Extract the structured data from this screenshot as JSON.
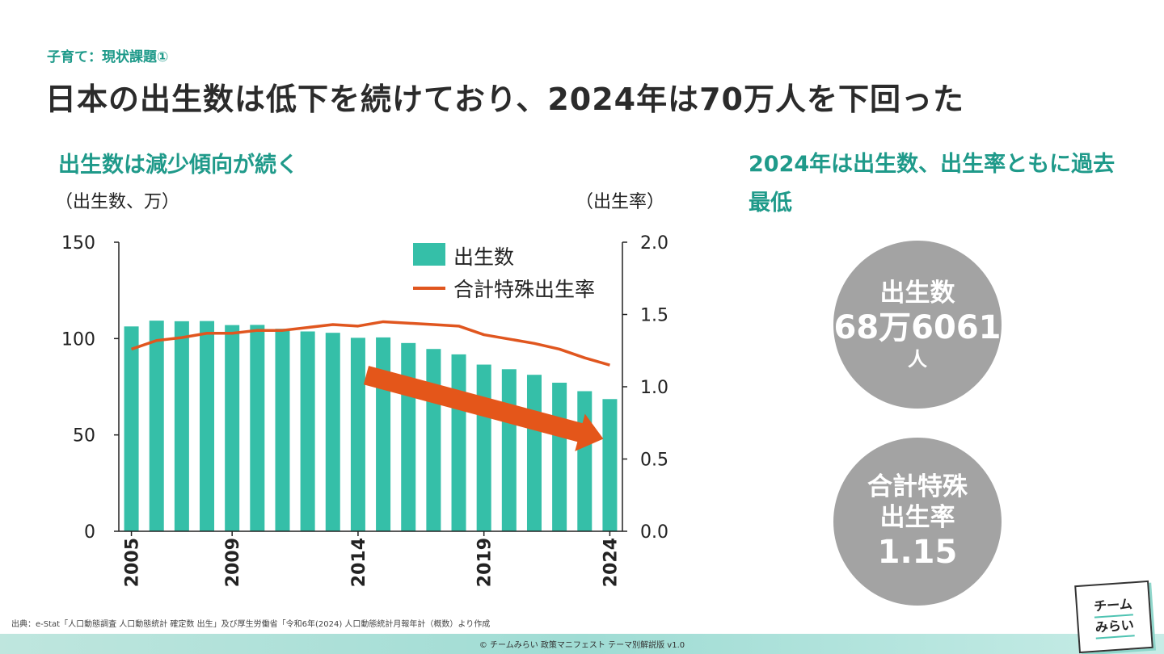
{
  "header": {
    "eyebrow": "子育て：現状課題①",
    "title": "日本の出生数は低下を続けており、2024年は70万人を下回った"
  },
  "left_panel": {
    "subtitle": "出生数は減少傾向が続く"
  },
  "right_panel": {
    "subtitle": "2024年は出生数、出生率ともに過去最低",
    "births_stat": {
      "label": "出生数",
      "value": "68万6061",
      "unit": "人"
    },
    "tfr_stat": {
      "label_line1": "合計特殊",
      "label_line2": "出生率",
      "value": "1.15"
    }
  },
  "colors": {
    "bar": "#35bfa8",
    "line": "#e0561f",
    "arrow": "#e4561a",
    "accent": "#1f9a8a",
    "circle": "#a3a3a3"
  },
  "chart_data": {
    "type": "bar",
    "ylabel_left": "（出生数、万）",
    "ylabel_right": "（出生率）",
    "ylim_left": [
      0,
      150
    ],
    "ylim_right": [
      0.0,
      2.0
    ],
    "yticks_left": [
      "150",
      "100",
      "50",
      "0"
    ],
    "yticks_right": [
      "2.0",
      "1.5",
      "1.0",
      "0.5",
      "0.0"
    ],
    "x": [
      "2005",
      "2006",
      "2007",
      "2008",
      "2009",
      "2010",
      "2011",
      "2012",
      "2013",
      "2014",
      "2015",
      "2016",
      "2017",
      "2018",
      "2019",
      "2020",
      "2021",
      "2022",
      "2023",
      "2024"
    ],
    "xtick_labels": [
      "2005",
      "2009",
      "2014",
      "2019",
      "2024"
    ],
    "legend_position": "top-right",
    "series": [
      {
        "name": "出生数",
        "type": "bar",
        "axis": "left",
        "values": [
          106.3,
          109.3,
          109.0,
          109.1,
          107.0,
          107.1,
          105.1,
          103.7,
          103.0,
          100.4,
          100.6,
          97.7,
          94.6,
          91.8,
          86.5,
          84.1,
          81.2,
          77.1,
          72.7,
          68.6
        ]
      },
      {
        "name": "合計特殊出生率",
        "type": "line",
        "axis": "right",
        "values": [
          1.26,
          1.32,
          1.34,
          1.37,
          1.37,
          1.39,
          1.39,
          1.41,
          1.43,
          1.42,
          1.45,
          1.44,
          1.43,
          1.42,
          1.36,
          1.33,
          1.3,
          1.26,
          1.2,
          1.15
        ]
      }
    ]
  },
  "source_note": "出典：e-Stat「人口動態調査 人口動態統計 確定数 出生」及び厚生労働省「令和6年(2024) 人口動態統計月報年計（概数）より作成",
  "footer": "© チームみらい 政策マニフェスト テーマ別解説版 v1.0",
  "logo": {
    "line1": "チーム",
    "line2": "みらい"
  }
}
